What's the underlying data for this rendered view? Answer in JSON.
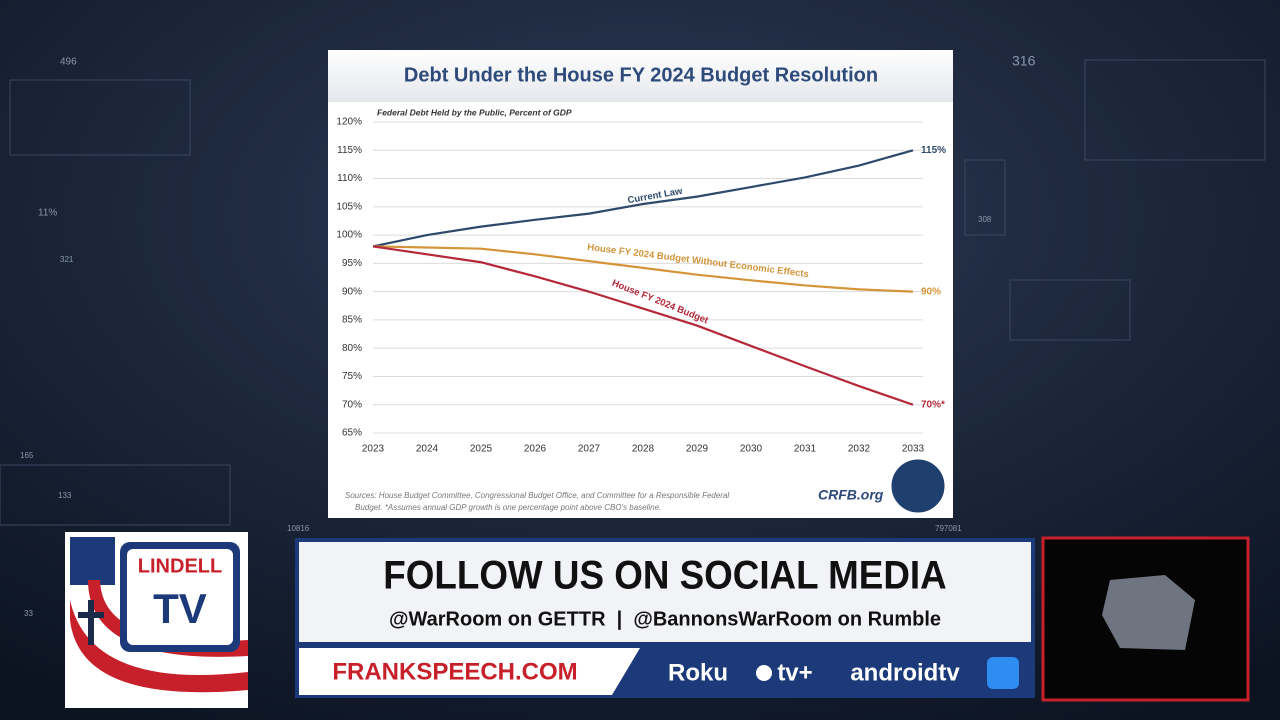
{
  "chart_data": {
    "type": "line",
    "title": "Debt Under the House FY 2024 Budget Resolution",
    "subtitle": "Federal Debt Held by the Public, Percent of GDP",
    "x": [
      2023,
      2024,
      2025,
      2026,
      2027,
      2028,
      2029,
      2030,
      2031,
      2032,
      2033
    ],
    "xlim": [
      2023,
      2033
    ],
    "xticks": [
      2023,
      2024,
      2025,
      2026,
      2027,
      2028,
      2029,
      2030,
      2031,
      2032,
      2033
    ],
    "ylim": [
      65,
      120
    ],
    "yticks": [
      {
        "value": 65,
        "label": "65%"
      },
      {
        "value": 70,
        "label": "70%"
      },
      {
        "value": 75,
        "label": "75%"
      },
      {
        "value": 80,
        "label": "80%"
      },
      {
        "value": 85,
        "label": "85%"
      },
      {
        "value": 90,
        "label": "90%"
      },
      {
        "value": 95,
        "label": "95%"
      },
      {
        "value": 100,
        "label": "100%"
      },
      {
        "value": 105,
        "label": "105%"
      },
      {
        "value": 110,
        "label": "110%"
      },
      {
        "value": 115,
        "label": "115%"
      },
      {
        "value": 120,
        "label": "120%"
      }
    ],
    "grid": true,
    "series": [
      {
        "name": "Current Law",
        "color": "#2e4a6b",
        "values": [
          98,
          100,
          101.5,
          102.7,
          103.8,
          105.5,
          106.8,
          108.5,
          110.2,
          112.3,
          115
        ],
        "end_label": "115%"
      },
      {
        "name": "House FY 2024 Budget Without Economic Effects",
        "color": "#d4943a",
        "values": [
          98,
          97.8,
          97.6,
          96.6,
          95.4,
          94.2,
          93,
          92,
          91.1,
          90.4,
          90
        ],
        "end_label": "90%"
      },
      {
        "name": "House FY 2024 Budget",
        "color": "#b5283a",
        "values": [
          98,
          96.6,
          95.2,
          92.7,
          90,
          87,
          84,
          80.4,
          76.8,
          73.3,
          70
        ],
        "end_label": "70%*"
      }
    ],
    "source": [
      "Sources: House Budget Committee, Congressional Budget Office, and Committee for a Responsible Federal",
      "Budget. *Assumes annual GDP growth is one percentage point above CBO's baseline."
    ],
    "brand": "CRFB.org"
  },
  "broadcast": {
    "logo_top": "LINDELL",
    "logo_bottom": "TV",
    "headline": "FOLLOW US ON SOCIAL MEDIA",
    "handles": "@WarRoom on GETTR  |  @BannonsWarRoom on Rumble",
    "site": "FRANKSPEECH.COM",
    "platforms": [
      "Roku",
      "tv+",
      "androidtv"
    ],
    "background_labels": [
      "496",
      "316",
      "11%",
      "321",
      "308",
      "165",
      "133",
      "33",
      "10816",
      "797081"
    ]
  }
}
